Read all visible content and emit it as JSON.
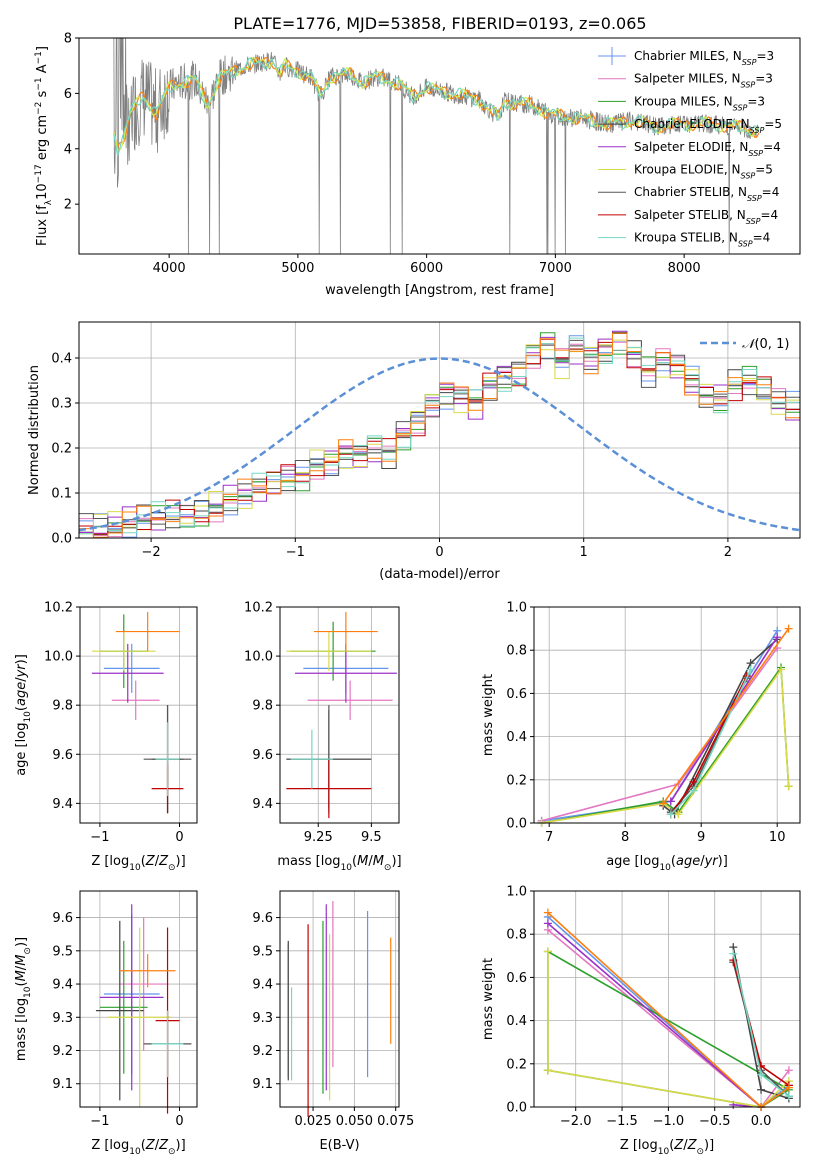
{
  "figure": {
    "title": "PLATE=1776, MJD=53858, FIBERID=0193, z=0.065"
  },
  "colors": [
    "#6495ed",
    "#e377c2",
    "#2ca02c",
    "#444444",
    "#9b30c6",
    "#d9d94a",
    "#555555",
    "#c00000",
    "#76d7c4",
    "#ff7f0e",
    "#7f7f7f",
    "#ccee55"
  ],
  "chart_data": [
    {
      "id": "spectrum",
      "type": "line",
      "title": "PLATE=1776, MJD=53858, FIBERID=0193, z=0.065",
      "xlabel": "wavelength [Angstrom, rest frame]",
      "ylabel": "Flux [f_λ 10^-17 erg cm^-2 s^-1 A^-1]",
      "xlim": [
        3300,
        8900
      ],
      "ylim": [
        0.2,
        8
      ],
      "xticks": [
        "4000",
        "5000",
        "6000",
        "7000",
        "8000"
      ],
      "yticks": [
        "2",
        "4",
        "6",
        "8"
      ],
      "legend_position": "upper-right",
      "legend": [
        "Chabrier MILES, N_SSP=3",
        "Salpeter MILES, N_SSP=3",
        "Kroupa MILES, N_SSP=3",
        "Chabrier ELODIE, N_SSP=5",
        "Salpeter ELODIE, N_SSP=4",
        "Kroupa ELODIE, N_SSP=5",
        "Chabrier STELIB, N_SSP=4",
        "Salpeter STELIB, N_SSP=4",
        "Kroupa STELIB, N_SSP=4"
      ],
      "model_x": [
        3570,
        3600,
        3650,
        3700,
        3800,
        3900,
        4000,
        4100,
        4200,
        4300,
        4400,
        4500,
        4600,
        4700,
        4800,
        4860,
        4900,
        5000,
        5100,
        5175,
        5250,
        5400,
        5500,
        5600,
        5700,
        5800,
        5890,
        6000,
        6200,
        6400,
        6560,
        6600,
        6800,
        7000,
        7200,
        7400,
        7600,
        7800,
        8000,
        8200,
        8400,
        8600
      ],
      "model_y": [
        4.6,
        4.0,
        4.5,
        5.3,
        5.9,
        5.3,
        6.2,
        6.4,
        6.5,
        5.6,
        6.6,
        6.8,
        7.0,
        7.1,
        7.2,
        6.7,
        7.0,
        6.8,
        6.6,
        5.9,
        6.6,
        6.7,
        6.4,
        6.6,
        6.5,
        6.3,
        5.9,
        6.2,
        6.0,
        5.8,
        5.1,
        5.7,
        5.6,
        5.2,
        5.1,
        4.9,
        5.0,
        4.8,
        4.9,
        4.9,
        4.8,
        4.6
      ],
      "data_series_color": "#808080"
    },
    {
      "id": "residuals",
      "type": "histogram",
      "xlabel": "(data-model)/error",
      "ylabel": "Normed distribution",
      "xlim": [
        -2.5,
        2.5
      ],
      "ylim": [
        0,
        0.48
      ],
      "xticks": [
        "−2",
        "−1",
        "0",
        "1",
        "2"
      ],
      "yticks": [
        "0.0",
        "0.1",
        "0.2",
        "0.3",
        "0.4"
      ],
      "legend": "N(0,1)",
      "legend_position": "upper-right",
      "bin_width": 0.1,
      "bin_start": -2.5,
      "base_density": [
        0.02,
        0.025,
        0.03,
        0.035,
        0.04,
        0.045,
        0.05,
        0.045,
        0.055,
        0.07,
        0.085,
        0.095,
        0.11,
        0.12,
        0.135,
        0.14,
        0.165,
        0.17,
        0.185,
        0.18,
        0.2,
        0.19,
        0.23,
        0.26,
        0.3,
        0.32,
        0.31,
        0.3,
        0.34,
        0.36,
        0.37,
        0.41,
        0.43,
        0.39,
        0.42,
        0.4,
        0.42,
        0.44,
        0.41,
        0.37,
        0.39,
        0.38,
        0.35,
        0.32,
        0.31,
        0.34,
        0.35,
        0.33,
        0.3,
        0.29,
        0.28,
        0.25,
        0.24,
        0.23,
        0.21,
        0.19,
        0.18,
        0.17,
        0.15,
        0.12,
        0.11,
        0.1,
        0.09,
        0.08,
        0.075,
        0.07,
        0.065,
        0.05,
        0.045,
        0.04,
        0.035,
        0.03,
        0.028,
        0.025,
        0.022,
        0.02,
        0.018,
        0.016,
        0.015,
        0.014,
        0.013,
        0.012,
        0.012,
        0.011,
        0.011,
        0.01,
        0.01,
        0.01,
        0.01,
        0.01
      ]
    },
    {
      "id": "age-vs-Z",
      "type": "scatter",
      "xlabel": "Z [log10(Z/Z☉)]",
      "ylabel": "age [log10(age/yr)]",
      "xlim": [
        -1.25,
        0.22
      ],
      "ylim": [
        9.32,
        10.2
      ],
      "xticks": [
        -1,
        0
      ],
      "yticks": [
        9.4,
        9.6,
        9.8,
        10.0,
        10.2
      ],
      "points": [
        {
          "x": -0.6,
          "y": 9.95,
          "xerr": 0.35,
          "yerr": 0.1
        },
        {
          "x": -0.55,
          "y": 9.82,
          "xerr": 0.3,
          "yerr": 0.08
        },
        {
          "x": -0.7,
          "y": 10.02,
          "xerr": 0.3,
          "yerr": 0.15
        },
        {
          "x": -0.15,
          "y": 9.58,
          "xerr": 0.2,
          "yerr": 0.22
        },
        {
          "x": -0.65,
          "y": 9.93,
          "xerr": 0.45,
          "yerr": 0.12
        },
        {
          "x": -0.7,
          "y": 10.02,
          "xerr": 0.4,
          "yerr": 0.08
        },
        {
          "x": -0.15,
          "y": 9.58,
          "xerr": 0.3,
          "yerr": 0.22
        },
        {
          "x": -0.15,
          "y": 9.46,
          "xerr": 0.2,
          "yerr": 0.1
        },
        {
          "x": -0.15,
          "y": 9.58,
          "xerr": 0.15,
          "yerr": 0.15
        },
        {
          "x": -0.4,
          "y": 10.1,
          "xerr": 0.4,
          "yerr": 0.08
        }
      ]
    },
    {
      "id": "age-vs-mass",
      "type": "scatter",
      "xlabel": "mass [log10(M/M☉)]",
      "ylabel": "",
      "xlim": [
        9.07,
        9.63
      ],
      "ylim": [
        9.32,
        10.2
      ],
      "xticks": [
        9.25,
        9.5
      ],
      "yticks": [
        9.4,
        9.6,
        9.8,
        10.0,
        10.2
      ],
      "points": [
        {
          "x": 9.38,
          "y": 9.95,
          "xerr": 0.2,
          "yerr": 0.1
        },
        {
          "x": 9.4,
          "y": 9.82,
          "xerr": 0.2,
          "yerr": 0.08
        },
        {
          "x": 9.32,
          "y": 10.02,
          "xerr": 0.2,
          "yerr": 0.12
        },
        {
          "x": 9.3,
          "y": 9.58,
          "xerr": 0.2,
          "yerr": 0.2
        },
        {
          "x": 9.38,
          "y": 9.93,
          "xerr": 0.24,
          "yerr": 0.12
        },
        {
          "x": 9.3,
          "y": 10.02,
          "xerr": 0.2,
          "yerr": 0.08
        },
        {
          "x": 9.3,
          "y": 9.58,
          "xerr": 0.2,
          "yerr": 0.22
        },
        {
          "x": 9.3,
          "y": 9.46,
          "xerr": 0.2,
          "yerr": 0.12
        },
        {
          "x": 9.22,
          "y": 9.58,
          "xerr": 0.1,
          "yerr": 0.12
        },
        {
          "x": 9.38,
          "y": 10.1,
          "xerr": 0.15,
          "yerr": 0.08
        }
      ]
    },
    {
      "id": "weight-vs-age",
      "type": "line",
      "xlabel": "age [log10(age/yr)]",
      "ylabel": "mass weight",
      "xlim": [
        6.8,
        10.3
      ],
      "ylim": [
        0,
        1
      ],
      "xticks": [
        7,
        8,
        9,
        10
      ],
      "yticks": [
        0.0,
        0.2,
        0.4,
        0.6,
        0.8,
        1.0
      ],
      "series": [
        {
          "x": [
            6.9,
            8.6,
            10.0
          ],
          "y": [
            0.01,
            0.1,
            0.89
          ]
        },
        {
          "x": [
            6.9,
            8.7,
            10.0
          ],
          "y": [
            0.01,
            0.18,
            0.81
          ]
        },
        {
          "x": [
            6.9,
            8.5,
            8.7,
            10.05,
            10.15
          ],
          "y": [
            0.0,
            0.1,
            0.05,
            0.72,
            0.17
          ]
        },
        {
          "x": [
            8.5,
            8.65,
            9.65,
            10.0
          ],
          "y": [
            0.08,
            0.04,
            0.74,
            0.85
          ]
        },
        {
          "x": [
            8.6,
            10.0
          ],
          "y": [
            0.1,
            0.86
          ]
        },
        {
          "x": [
            6.9,
            8.5,
            8.7,
            10.05,
            10.15
          ],
          "y": [
            0.0,
            0.09,
            0.04,
            0.71,
            0.17
          ]
        },
        {
          "x": [
            8.6,
            8.9,
            9.6
          ],
          "y": [
            0.05,
            0.17,
            0.67
          ]
        },
        {
          "x": [
            8.6,
            8.9,
            9.6
          ],
          "y": [
            0.04,
            0.19,
            0.68
          ]
        },
        {
          "x": [
            8.6,
            8.9,
            9.65
          ],
          "y": [
            0.04,
            0.15,
            0.71
          ]
        },
        {
          "x": [
            8.5,
            10.15
          ],
          "y": [
            0.09,
            0.9
          ]
        }
      ]
    },
    {
      "id": "mass-vs-Z",
      "type": "scatter",
      "xlabel": "Z [log10(Z/Z☉)]",
      "ylabel": "mass [log10(M/M☉)]",
      "xlim": [
        -1.25,
        0.22
      ],
      "ylim": [
        9.03,
        9.68
      ],
      "xticks": [
        -1,
        0
      ],
      "yticks": [
        9.1,
        9.2,
        9.3,
        9.4,
        9.5,
        9.6
      ],
      "points": [
        {
          "x": -0.6,
          "y": 9.37,
          "xerr": 0.35,
          "yerr": 0.24
        },
        {
          "x": -0.45,
          "y": 9.4,
          "xerr": 0.3,
          "yerr": 0.2
        },
        {
          "x": -0.7,
          "y": 9.33,
          "xerr": 0.3,
          "yerr": 0.2
        },
        {
          "x": -0.75,
          "y": 9.32,
          "xerr": 0.3,
          "yerr": 0.27
        },
        {
          "x": -0.6,
          "y": 9.36,
          "xerr": 0.4,
          "yerr": 0.28
        },
        {
          "x": -0.5,
          "y": 9.3,
          "xerr": 0.4,
          "yerr": 0.27
        },
        {
          "x": -0.15,
          "y": 9.22,
          "xerr": 0.3,
          "yerr": 0.1
        },
        {
          "x": -0.15,
          "y": 9.29,
          "xerr": 0.15,
          "yerr": 0.28
        },
        {
          "x": -0.15,
          "y": 9.22,
          "xerr": 0.2,
          "yerr": 0.1
        },
        {
          "x": -0.4,
          "y": 9.44,
          "xerr": 0.35,
          "yerr": 0.05
        }
      ]
    },
    {
      "id": "mass-vs-ebv",
      "type": "scatter",
      "xlabel": "E(B-V)",
      "ylabel": "",
      "xlim": [
        0.005,
        0.077
      ],
      "ylim": [
        9.03,
        9.68
      ],
      "xticks": [
        0.025,
        0.05,
        0.075
      ],
      "xticklabels": [
        "0.025",
        "0.050",
        "0.075"
      ],
      "yticks": [
        9.1,
        9.2,
        9.3,
        9.4,
        9.5,
        9.6
      ],
      "points": [
        {
          "x": 0.058,
          "y": 9.37,
          "yerr": 0.25
        },
        {
          "x": 0.037,
          "y": 9.4,
          "yerr": 0.25
        },
        {
          "x": 0.031,
          "y": 9.33,
          "yerr": 0.26
        },
        {
          "x": 0.01,
          "y": 9.32,
          "yerr": 0.21
        },
        {
          "x": 0.033,
          "y": 9.36,
          "yerr": 0.28
        },
        {
          "x": 0.035,
          "y": 9.3,
          "yerr": 0.25
        },
        {
          "x": 0.01,
          "y": 9.32,
          "yerr": 0.2
        },
        {
          "x": 0.022,
          "y": 9.29,
          "yerr": 0.29
        },
        {
          "x": 0.012,
          "y": 9.25,
          "yerr": 0.14
        },
        {
          "x": 0.072,
          "y": 9.38,
          "yerr": 0.16
        }
      ]
    },
    {
      "id": "weight-vs-Z",
      "type": "line",
      "xlabel": "Z [log10(Z/Z☉)]",
      "ylabel": "mass weight",
      "xlim": [
        -2.45,
        0.42
      ],
      "ylim": [
        0,
        1
      ],
      "xticks": [
        -2.0,
        -1.5,
        -1.0,
        -0.5,
        0.0
      ],
      "xticklabels": [
        "−2.0",
        "−1.5",
        "−1.0",
        "−0.5",
        "0.0"
      ],
      "yticks": [
        0.0,
        0.2,
        0.4,
        0.6,
        0.8,
        1.0
      ],
      "series": [
        {
          "x": [
            -2.3,
            0.0,
            0.3
          ],
          "y": [
            0.88,
            0.0,
            0.1
          ]
        },
        {
          "x": [
            -2.3,
            0.0,
            0.3
          ],
          "y": [
            0.82,
            0.0,
            0.17
          ]
        },
        {
          "x": [
            -2.3,
            0.0,
            0.3,
            -2.3,
            -2.3
          ],
          "y": [
            0.17,
            0.0,
            0.08,
            0.72,
            0.17
          ]
        },
        {
          "x": [
            -0.3,
            0.0,
            0.3
          ],
          "y": [
            0.74,
            0.08,
            0.04
          ]
        },
        {
          "x": [
            -2.3,
            0.0,
            -0.3
          ],
          "y": [
            0.85,
            0.0,
            0.01
          ]
        },
        {
          "x": [
            -2.3,
            -2.3,
            0.0,
            0.3
          ],
          "y": [
            0.72,
            0.17,
            0.0,
            0.12
          ]
        },
        {
          "x": [
            -0.3,
            0.0,
            0.3
          ],
          "y": [
            0.67,
            0.17,
            0.05
          ]
        },
        {
          "x": [
            -0.3,
            0.0,
            0.3
          ],
          "y": [
            0.68,
            0.19,
            0.1
          ]
        },
        {
          "x": [
            -0.3,
            0.0,
            0.3
          ],
          "y": [
            0.71,
            0.15,
            0.05
          ]
        },
        {
          "x": [
            -2.3,
            0.0,
            0.3
          ],
          "y": [
            0.9,
            0.0,
            0.09
          ]
        }
      ]
    }
  ]
}
